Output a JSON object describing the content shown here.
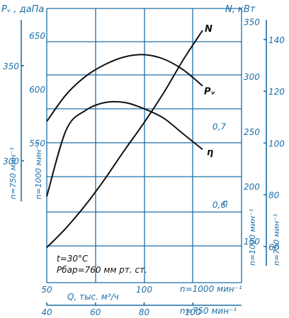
{
  "chart_data": {
    "type": "line",
    "grid": true,
    "left_axis_label": "Pᵥ , даПа",
    "right_axis_label": "N, кВт",
    "speed_label_1000": "n=1000 мин⁻¹",
    "speed_label_750": "n=750 мин⁻¹",
    "x_axis_1000": {
      "title": "Q, тыс. м³/ч",
      "speed": "n=1000 мин⁻¹",
      "ticks": [
        50,
        100
      ],
      "range": [
        50,
        150
      ]
    },
    "x_axis_750": {
      "speed": "n=750 мин⁻¹",
      "ticks": [
        40,
        60,
        80,
        100
      ],
      "range": [
        40,
        120
      ]
    },
    "pressure_axis_1000": {
      "ticks": [
        550,
        600,
        650
      ],
      "range": [
        420,
        675
      ]
    },
    "pressure_axis_750": {
      "ticks": [
        300,
        350
      ],
      "range": [
        236,
        380
      ]
    },
    "power_axis_1000": {
      "ticks": [
        150,
        200,
        250,
        300,
        350
      ],
      "range": [
        112,
        362
      ]
    },
    "power_axis_750": {
      "ticks": [
        60,
        80,
        100,
        120,
        140
      ],
      "range": [
        46,
        152
      ]
    },
    "efficiency_axis": {
      "ticks": [
        0.6,
        0.7
      ],
      "range": [
        0.5,
        0.85
      ],
      "label": "η"
    },
    "series": [
      {
        "name": "Pᵥ",
        "axis": "pressure_1000",
        "x": [
          50,
          60,
          70,
          80,
          90,
          100,
          110,
          120,
          130
        ],
        "y": [
          570,
          595,
          612,
          623,
          630,
          632,
          628,
          618,
          603
        ]
      },
      {
        "name": "N",
        "axis": "power_1000",
        "x": [
          50,
          60,
          70,
          80,
          90,
          100,
          110,
          120,
          130
        ],
        "y": [
          144,
          162,
          183,
          207,
          233,
          258,
          285,
          315,
          342
        ]
      },
      {
        "name": "η",
        "axis": "efficiency",
        "x": [
          50,
          60,
          70,
          80,
          90,
          100,
          110,
          120,
          130
        ],
        "y": [
          0.61,
          0.695,
          0.72,
          0.73,
          0.73,
          0.722,
          0.71,
          0.69,
          0.67
        ]
      }
    ],
    "annotations": {
      "temperature": "t=30°C",
      "pressure": "Pбар=760 мм рт. ст."
    }
  }
}
